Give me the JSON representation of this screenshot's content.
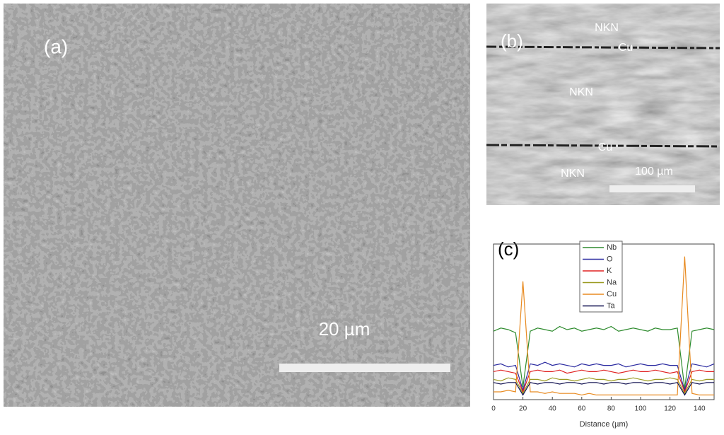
{
  "panels": {
    "a": {
      "label": "(a)",
      "scale_bar": "20 µm"
    },
    "b": {
      "label": "(b)",
      "texts": [
        "NKN",
        "Cu",
        "NKN",
        "Cu",
        "NKN"
      ],
      "scale_bar": "100 µm"
    }
  },
  "chart_data": {
    "type": "line",
    "title": "(c)",
    "x_label": "Distance (µm)",
    "x": [
      0,
      5,
      10,
      15,
      20,
      25,
      30,
      35,
      40,
      45,
      50,
      55,
      60,
      65,
      70,
      75,
      80,
      85,
      90,
      95,
      100,
      105,
      110,
      115,
      120,
      125,
      130,
      135,
      140,
      145,
      150
    ],
    "xlim": [
      0,
      150
    ],
    "xticks": [
      0,
      20,
      40,
      60,
      80,
      100,
      120,
      140
    ],
    "ylim": [
      0,
      10
    ],
    "series": [
      {
        "name": "Nb",
        "color": "#2e8b2e",
        "values": [
          4.4,
          4.6,
          4.5,
          4.3,
          0.8,
          4.4,
          4.6,
          4.5,
          4.4,
          4.7,
          4.5,
          4.6,
          4.4,
          4.5,
          4.6,
          4.5,
          4.7,
          4.4,
          4.5,
          4.6,
          4.5,
          4.4,
          4.6,
          4.5,
          4.5,
          4.6,
          0.7,
          4.4,
          4.5,
          4.6,
          4.5
        ]
      },
      {
        "name": "O",
        "color": "#2a2aa0",
        "values": [
          2.2,
          2.3,
          2.1,
          2.2,
          0.6,
          2.3,
          2.2,
          2.4,
          2.2,
          2.3,
          2.2,
          2.1,
          2.3,
          2.2,
          2.3,
          2.2,
          2.2,
          2.3,
          2.1,
          2.2,
          2.3,
          2.2,
          2.2,
          2.3,
          2.2,
          2.2,
          0.6,
          2.3,
          2.2,
          2.1,
          2.3
        ]
      },
      {
        "name": "K",
        "color": "#e02020",
        "values": [
          1.8,
          1.9,
          1.8,
          1.7,
          0.5,
          1.8,
          1.9,
          1.8,
          1.8,
          1.9,
          1.7,
          1.8,
          1.9,
          1.8,
          1.8,
          1.9,
          1.8,
          1.7,
          1.8,
          1.9,
          1.8,
          1.8,
          1.9,
          1.8,
          1.7,
          1.8,
          0.5,
          1.8,
          1.9,
          1.8,
          1.8
        ]
      },
      {
        "name": "Na",
        "color": "#9a9a20",
        "values": [
          1.3,
          1.2,
          1.4,
          1.3,
          0.4,
          1.3,
          1.3,
          1.2,
          1.4,
          1.3,
          1.3,
          1.2,
          1.3,
          1.4,
          1.3,
          1.3,
          1.2,
          1.3,
          1.3,
          1.4,
          1.3,
          1.2,
          1.3,
          1.3,
          1.4,
          1.3,
          0.4,
          1.3,
          1.2,
          1.3,
          1.3
        ]
      },
      {
        "name": "Cu",
        "color": "#e88a20",
        "values": [
          0.5,
          0.5,
          0.6,
          0.5,
          7.6,
          0.5,
          0.5,
          0.4,
          0.5,
          0.4,
          0.4,
          0.4,
          0.3,
          0.4,
          0.3,
          0.3,
          0.3,
          0.3,
          0.3,
          0.3,
          0.3,
          0.3,
          0.3,
          0.3,
          0.3,
          0.3,
          9.2,
          0.4,
          0.3,
          0.3,
          0.3
        ]
      },
      {
        "name": "Ta",
        "color": "#101050",
        "values": [
          1.1,
          1.0,
          1.1,
          1.1,
          0.3,
          1.1,
          1.0,
          1.1,
          1.1,
          1.0,
          1.1,
          1.1,
          1.0,
          1.1,
          1.1,
          1.0,
          1.1,
          1.1,
          1.0,
          1.1,
          1.1,
          1.0,
          1.1,
          1.1,
          1.0,
          1.1,
          0.3,
          1.1,
          1.0,
          1.1,
          1.1
        ]
      }
    ]
  }
}
